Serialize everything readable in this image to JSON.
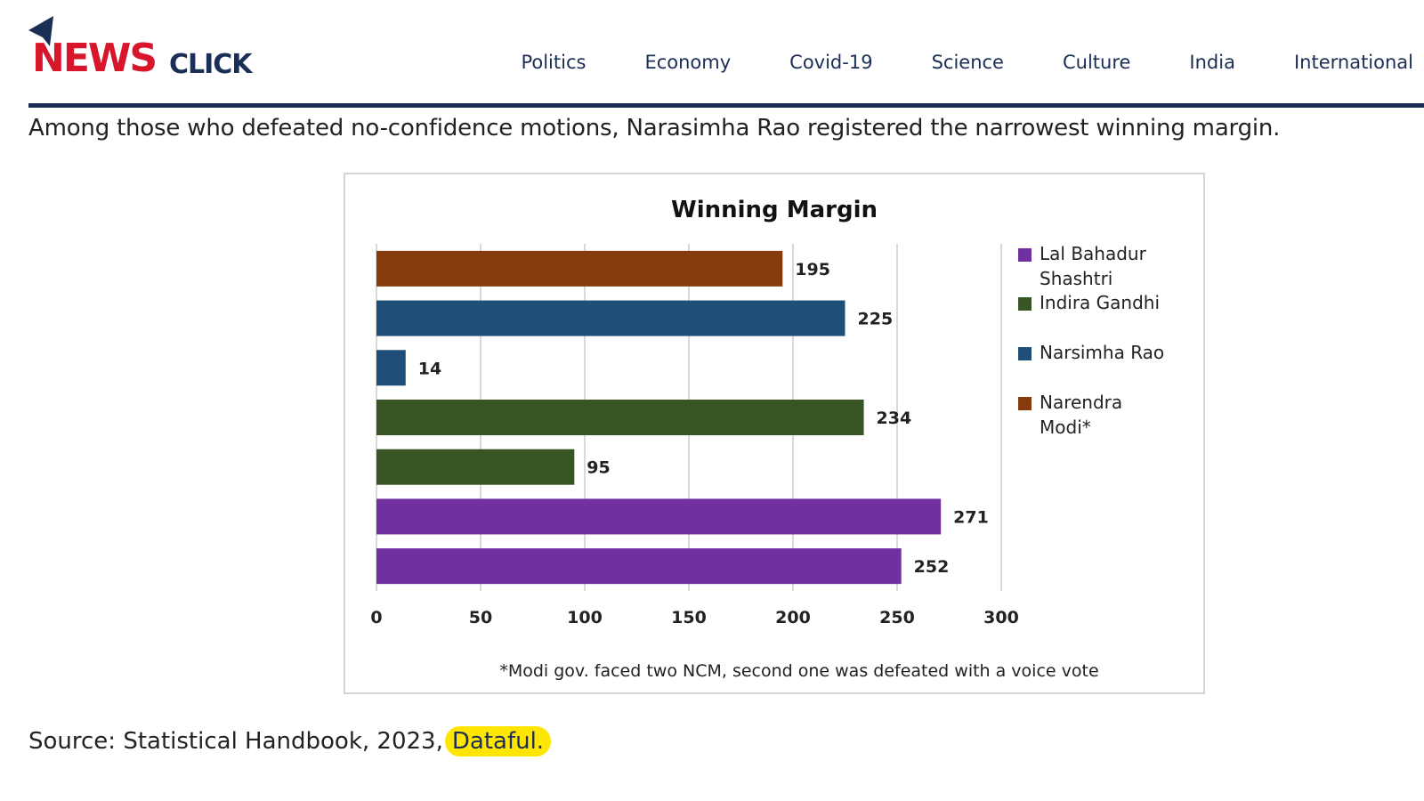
{
  "site": {
    "logo_primary": "NEWS",
    "logo_secondary": "CLICK",
    "brand_red": "#d7162b",
    "brand_navy": "#1b2e55"
  },
  "nav": {
    "items": [
      "Politics",
      "Economy",
      "Covid-19",
      "Science",
      "Culture",
      "India",
      "International"
    ]
  },
  "article": {
    "lead": "Among those who defeated no-confidence motions, Narasimha Rao registered the narrowest winning margin.",
    "source_prefix": "Source: Statistical Handbook, 2023,",
    "source_link": "Dataful."
  },
  "chart_data": {
    "type": "bar",
    "orientation": "horizontal",
    "title": "Winning Margin",
    "footnote": "*Modi gov. faced two NCM, second one was defeated with a voice vote",
    "xlim": [
      0,
      300
    ],
    "xticks": [
      0,
      50,
      100,
      150,
      200,
      250,
      300
    ],
    "grid": true,
    "legend_position": "right",
    "bars": [
      {
        "value": 195,
        "series": "Narendra Modi*"
      },
      {
        "value": 225,
        "series": "Narsimha Rao"
      },
      {
        "value": 14,
        "series": "Narsimha Rao"
      },
      {
        "value": 234,
        "series": "Indira Gandhi"
      },
      {
        "value": 95,
        "series": "Indira Gandhi"
      },
      {
        "value": 271,
        "series": "Lal Bahadur Shashtri"
      },
      {
        "value": 252,
        "series": "Lal Bahadur Shashtri"
      }
    ],
    "legend": [
      {
        "name": "Lal Bahadur Shashtri",
        "lines": [
          "Lal Bahadur",
          "Shashtri"
        ],
        "color": "#7030a0"
      },
      {
        "name": "Indira Gandhi",
        "lines": [
          "Indira Gandhi"
        ],
        "color": "#375623"
      },
      {
        "name": "Narsimha Rao",
        "lines": [
          "Narsimha Rao"
        ],
        "color": "#1f4e79"
      },
      {
        "name": "Narendra Modi*",
        "lines": [
          "Narendra",
          "Modi*"
        ],
        "color": "#843c0c"
      }
    ]
  }
}
